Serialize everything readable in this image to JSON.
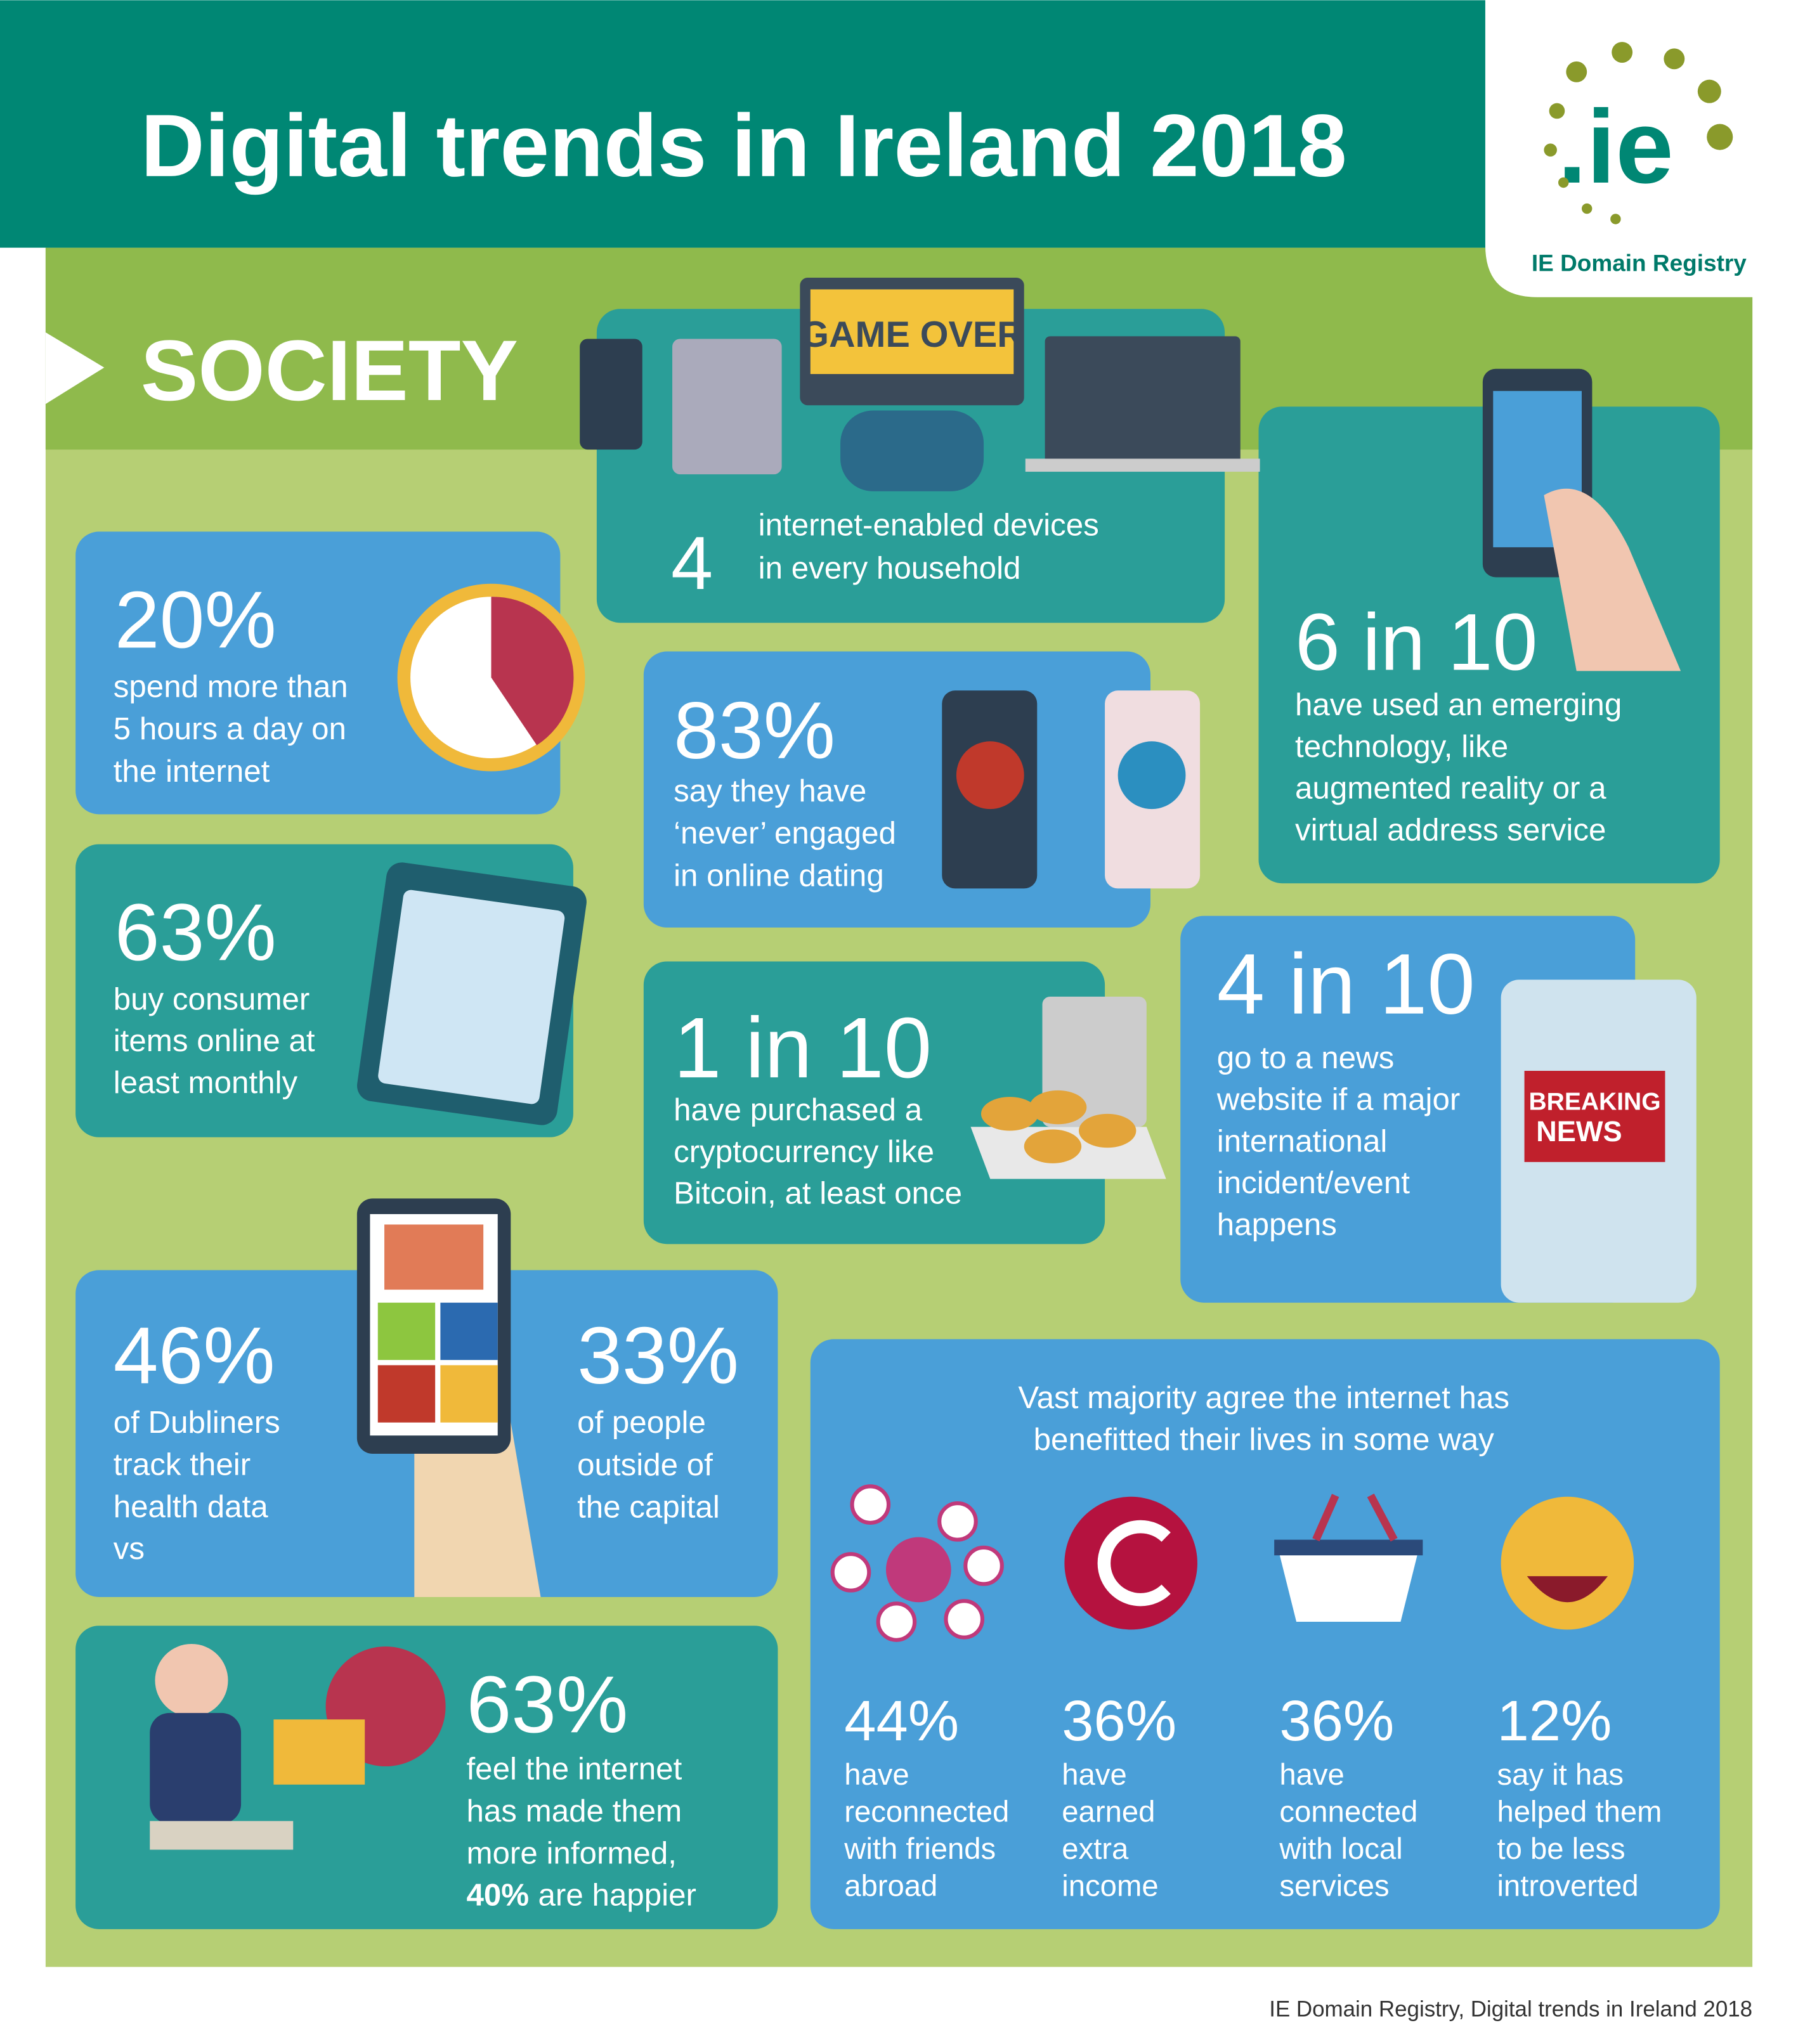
{
  "header": {
    "title": "Digital trends in Ireland 2018"
  },
  "logo": {
    "mark": ".ie",
    "name": "IE Domain Registry"
  },
  "section": "SOCIETY",
  "icons": {
    "game_over": "GAME OVER",
    "breaking": "BREAKING",
    "news": "NEWS"
  },
  "stats": [
    {
      "value": "4",
      "lines": [
        "internet-enabled devices",
        "in every household"
      ]
    },
    {
      "value": "20%",
      "lines": [
        "spend more than",
        "5 hours a day on",
        "the internet"
      ]
    },
    {
      "value": "63%",
      "lines": [
        "buy consumer",
        "items online at",
        "least monthly"
      ]
    },
    {
      "value": "83%",
      "lines": [
        "say they have",
        "‘never’ engaged",
        "in online dating"
      ]
    },
    {
      "value": "1 in 10",
      "lines": [
        "have purchased a",
        "cryptocurrency like",
        "Bitcoin, at least once"
      ]
    },
    {
      "value": "6 in 10",
      "lines": [
        "have used an emerging",
        "technology, like",
        "augmented reality or a",
        "virtual address service"
      ]
    },
    {
      "value": "4 in 10",
      "lines": [
        "go to a news",
        "website if a major",
        "international",
        "incident/event",
        "happens"
      ]
    },
    {
      "value": "46%",
      "lines": [
        "of Dubliners",
        "track their",
        "health data",
        "vs"
      ]
    },
    {
      "value": "33%",
      "lines": [
        "of people",
        "outside of",
        "the capital"
      ]
    },
    {
      "value": "63%",
      "lines": [
        "feel the internet",
        "has made them",
        "more informed,"
      ],
      "highlight": "40%",
      "tail": "are happier"
    }
  ],
  "benefits": {
    "heading": [
      "Vast majority agree the internet has",
      "benefitted their lives in some way"
    ],
    "items": [
      {
        "value": "44%",
        "lines": [
          "have",
          "reconnected",
          "with friends",
          "abroad"
        ]
      },
      {
        "value": "36%",
        "lines": [
          "have",
          "earned",
          "extra",
          "income"
        ]
      },
      {
        "value": "36%",
        "lines": [
          "have",
          "connected",
          "with local",
          "services"
        ]
      },
      {
        "value": "12%",
        "lines": [
          "say it has",
          "helped them",
          "to be less",
          "introverted"
        ]
      }
    ]
  },
  "footer": "IE Domain Registry, Digital trends in Ireland 2018"
}
